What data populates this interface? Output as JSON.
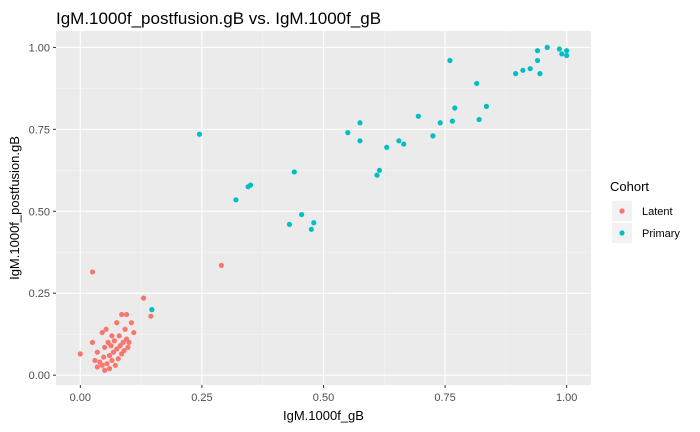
{
  "chart_data": {
    "type": "scatter",
    "title": "IgM.1000f_postfusion.gB vs. IgM.1000f_gB",
    "xlabel": "IgM.1000f_gB",
    "ylabel": "IgM.1000f_postfusion.gB",
    "xlim": [
      -0.05,
      1.05
    ],
    "ylim": [
      -0.03,
      1.05
    ],
    "x_ticks": [
      0.0,
      0.25,
      0.5,
      0.75,
      1.0
    ],
    "x_tick_labels": [
      "0.00",
      "0.25",
      "0.50",
      "0.75",
      "1.00"
    ],
    "y_ticks": [
      0.0,
      0.25,
      0.5,
      0.75,
      1.0
    ],
    "y_tick_labels": [
      "0.00",
      "0.25",
      "0.50",
      "0.75",
      "1.00"
    ],
    "grid": true,
    "legend": {
      "title": "Cohort",
      "position": "right"
    },
    "series": [
      {
        "name": "Latent",
        "color": "#F8766D",
        "points": [
          [
            0.0,
            0.065
          ],
          [
            0.025,
            0.315
          ],
          [
            0.025,
            0.1
          ],
          [
            0.03,
            0.045
          ],
          [
            0.035,
            0.025
          ],
          [
            0.035,
            0.07
          ],
          [
            0.04,
            0.04
          ],
          [
            0.045,
            0.13
          ],
          [
            0.045,
            0.03
          ],
          [
            0.048,
            0.055
          ],
          [
            0.05,
            0.085
          ],
          [
            0.05,
            0.015
          ],
          [
            0.053,
            0.14
          ],
          [
            0.055,
            0.035
          ],
          [
            0.057,
            0.1
          ],
          [
            0.06,
            0.06
          ],
          [
            0.06,
            0.02
          ],
          [
            0.063,
            0.09
          ],
          [
            0.065,
            0.12
          ],
          [
            0.065,
            0.045
          ],
          [
            0.068,
            0.07
          ],
          [
            0.07,
            0.105
          ],
          [
            0.072,
            0.03
          ],
          [
            0.075,
            0.16
          ],
          [
            0.075,
            0.08
          ],
          [
            0.078,
            0.05
          ],
          [
            0.08,
            0.12
          ],
          [
            0.082,
            0.09
          ],
          [
            0.085,
            0.065
          ],
          [
            0.085,
            0.185
          ],
          [
            0.088,
            0.1
          ],
          [
            0.09,
            0.075
          ],
          [
            0.092,
            0.14
          ],
          [
            0.095,
            0.185
          ],
          [
            0.095,
            0.11
          ],
          [
            0.098,
            0.085
          ],
          [
            0.1,
            0.1
          ],
          [
            0.105,
            0.16
          ],
          [
            0.11,
            0.13
          ],
          [
            0.13,
            0.235
          ],
          [
            0.145,
            0.18
          ],
          [
            0.29,
            0.335
          ]
        ]
      },
      {
        "name": "Primary",
        "color": "#00BFC4",
        "points": [
          [
            0.147,
            0.2
          ],
          [
            0.245,
            0.735
          ],
          [
            0.32,
            0.535
          ],
          [
            0.345,
            0.575
          ],
          [
            0.35,
            0.58
          ],
          [
            0.43,
            0.46
          ],
          [
            0.44,
            0.62
          ],
          [
            0.455,
            0.49
          ],
          [
            0.475,
            0.445
          ],
          [
            0.48,
            0.465
          ],
          [
            0.55,
            0.74
          ],
          [
            0.575,
            0.77
          ],
          [
            0.575,
            0.715
          ],
          [
            0.61,
            0.61
          ],
          [
            0.615,
            0.625
          ],
          [
            0.63,
            0.695
          ],
          [
            0.655,
            0.715
          ],
          [
            0.665,
            0.705
          ],
          [
            0.695,
            0.79
          ],
          [
            0.725,
            0.73
          ],
          [
            0.74,
            0.77
          ],
          [
            0.76,
            0.96
          ],
          [
            0.765,
            0.775
          ],
          [
            0.77,
            0.815
          ],
          [
            0.815,
            0.89
          ],
          [
            0.82,
            0.78
          ],
          [
            0.835,
            0.82
          ],
          [
            0.895,
            0.92
          ],
          [
            0.91,
            0.93
          ],
          [
            0.925,
            0.935
          ],
          [
            0.94,
            0.99
          ],
          [
            0.94,
            0.96
          ],
          [
            0.945,
            0.92
          ],
          [
            0.96,
            1.0
          ],
          [
            0.985,
            0.995
          ],
          [
            0.99,
            0.98
          ],
          [
            1.0,
            0.975
          ],
          [
            1.0,
            0.99
          ]
        ]
      }
    ]
  }
}
